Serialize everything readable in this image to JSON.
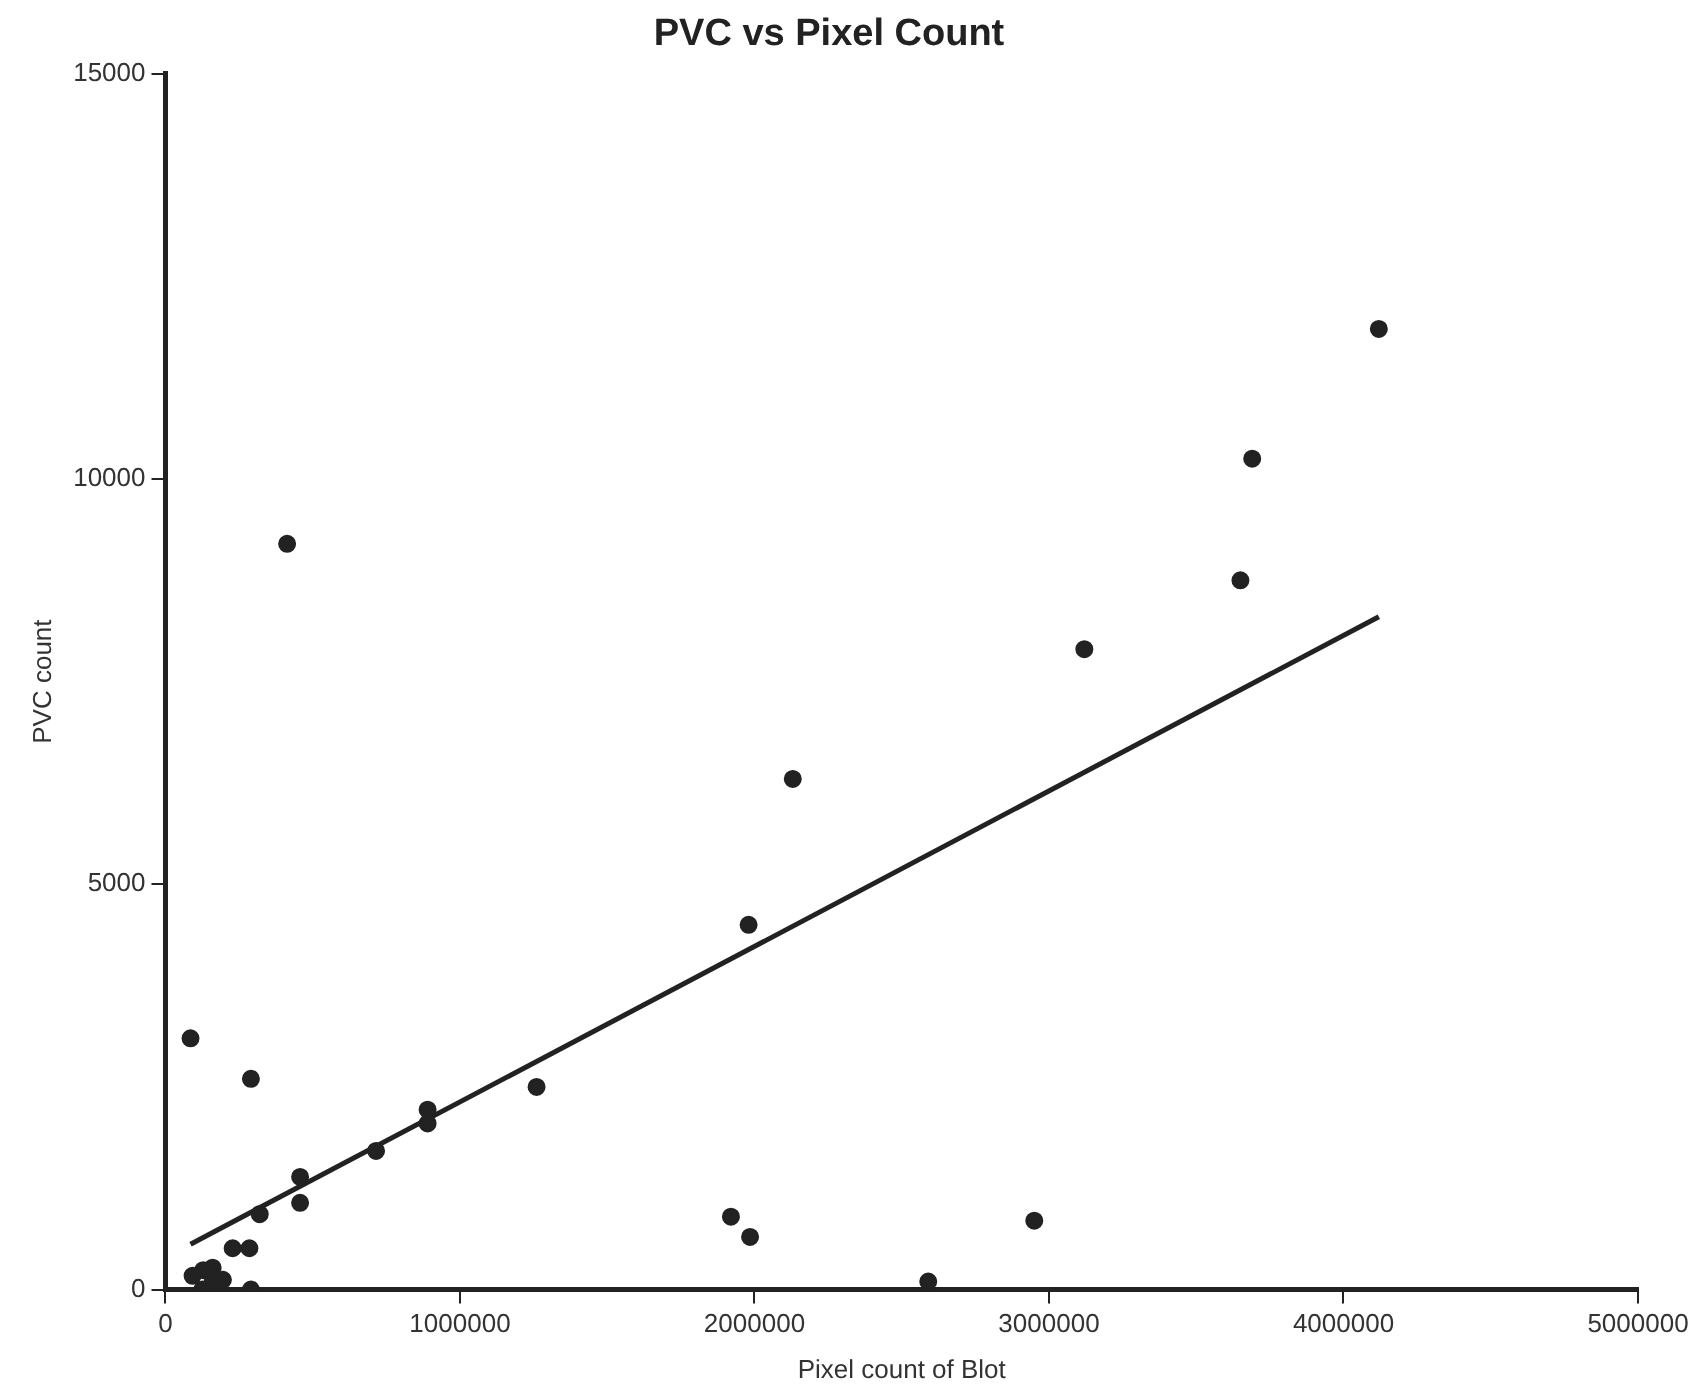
{
  "chart_data": {
    "type": "scatter",
    "title": "PVC vs Pixel Count",
    "xlabel": "Pixel count of Blot",
    "ylabel": "PVC count",
    "xlim": [
      0,
      5000000
    ],
    "xticks": [
      0,
      1000000,
      2000000,
      3000000,
      4000000,
      5000000
    ],
    "ylim": [
      0,
      15000
    ],
    "yticks": [
      0,
      5000,
      10000,
      15000
    ],
    "grid": false,
    "legend": false,
    "marker": "circle",
    "series": [
      {
        "color": "#222222",
        "x": [
          85000,
          413000,
          290000,
          2130000,
          1980000,
          1260000,
          890000,
          890000,
          715000,
          457000,
          457000,
          320000,
          228000,
          285000,
          1920000,
          1985000,
          2590000,
          2950000,
          3120000,
          3650000,
          3690000,
          4120000,
          92000,
          125000,
          128000,
          160000,
          160000,
          195000,
          290000
        ],
        "values": [
          3100,
          9200,
          2600,
          6300,
          4500,
          2500,
          2220,
          2050,
          1710,
          1390,
          1070,
          930,
          510,
          510,
          900,
          650,
          100,
          850,
          7900,
          8750,
          10250,
          11850,
          170,
          0,
          240,
          270,
          100,
          120,
          0
        ]
      },
      {
        "type": "line",
        "marker": "none",
        "color": "#222222",
        "x": [
          85000,
          4120000
        ],
        "values": [
          560,
          8300
        ]
      }
    ]
  }
}
